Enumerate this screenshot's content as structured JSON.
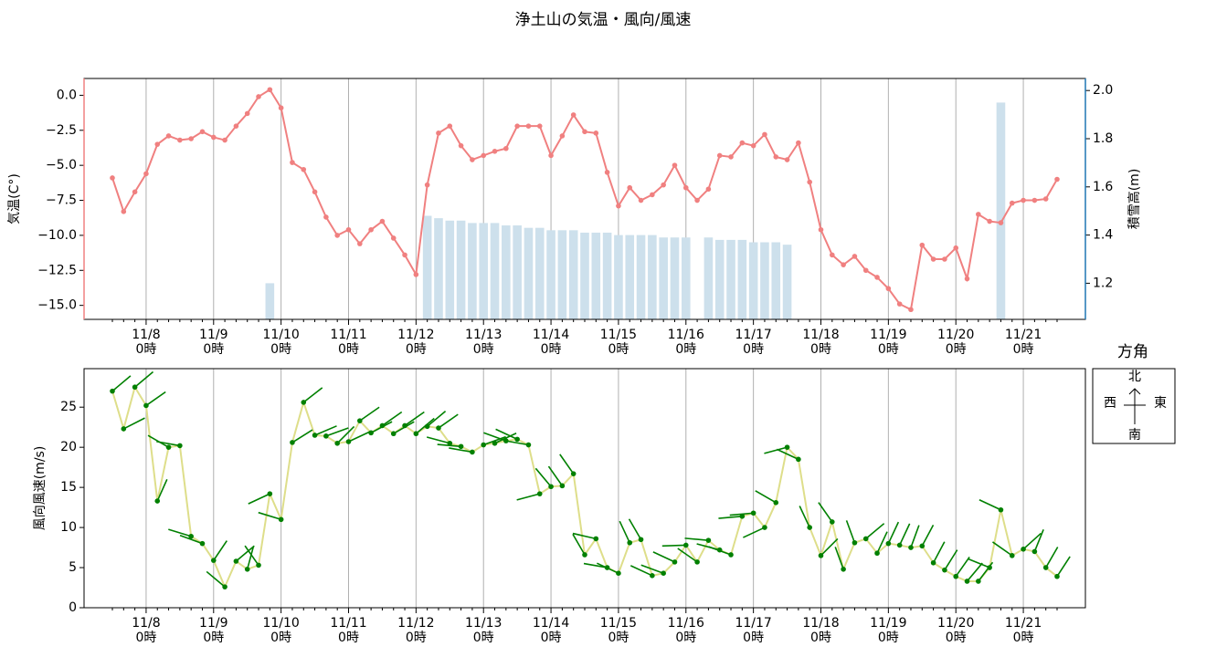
{
  "title": "浄土山の気温・風向/風速",
  "chart_data": [
    {
      "type": "line",
      "ylabel": "気温(C°)",
      "y2label": "積雪高(m)",
      "categories": [
        null,
        null,
        null,
        "11/8\n0時",
        null,
        null,
        null,
        null,
        null,
        "11/9\n0時",
        null,
        null,
        null,
        null,
        null,
        "11/10\n0時",
        null,
        null,
        null,
        null,
        null,
        "11/11\n0時",
        null,
        null,
        null,
        null,
        null,
        "11/12\n0時",
        null,
        null,
        null,
        null,
        null,
        "11/13\n0時",
        null,
        null,
        null,
        null,
        null,
        "11/14\n0時",
        null,
        null,
        null,
        null,
        null,
        "11/15\n0時",
        null,
        null,
        null,
        null,
        null,
        "11/16\n0時",
        null,
        null,
        null,
        null,
        null,
        "11/17\n0時",
        null,
        null,
        null,
        null,
        null,
        "11/18\n0時",
        null,
        null,
        null,
        null,
        null,
        "11/19\n0時",
        null,
        null,
        null,
        null,
        null,
        "11/20\n0時",
        null,
        null,
        null,
        null,
        null,
        "11/21\n0時",
        null,
        null,
        null
      ],
      "ylim": [
        -16.0,
        1.2
      ],
      "yticks": [
        {
          "value": 0,
          "label": "0.0"
        },
        {
          "value": -2.5,
          "label": "−2.5"
        },
        {
          "value": -5,
          "label": "−5.0"
        },
        {
          "value": -7.5,
          "label": "−7.5"
        },
        {
          "value": -10,
          "label": "−10.0"
        },
        {
          "value": -12.5,
          "label": "−12.5"
        },
        {
          "value": -15,
          "label": "−15.0"
        }
      ],
      "y2lim": [
        1.05,
        2.05
      ],
      "y2ticks": [
        1.2,
        1.4,
        1.6,
        1.8,
        {
          "value": 2,
          "label": "2.0"
        }
      ],
      "grid": true,
      "series": [
        {
          "type": "line",
          "color": "#f08080",
          "values": [
            -5.9,
            -8.3,
            -6.9,
            -5.6,
            -3.5,
            -2.9,
            -3.2,
            -3.1,
            -2.6,
            -3.0,
            -3.2,
            -2.2,
            -1.3,
            -0.1,
            0.4,
            -0.9,
            -4.8,
            -5.3,
            -6.9,
            -8.7,
            -10.0,
            -9.6,
            -10.6,
            -9.6,
            -9.0,
            -10.2,
            -11.4,
            -12.8,
            -6.4,
            -2.7,
            -2.2,
            -3.6,
            -4.6,
            -4.3,
            -4.0,
            -3.8,
            -2.2,
            -2.2,
            -2.2,
            -4.3,
            -2.9,
            -1.4,
            -2.6,
            -2.7,
            -5.5,
            -7.9,
            -6.6,
            -7.5,
            -7.1,
            -6.4,
            -5.0,
            -6.6,
            -7.5,
            -6.7,
            -4.3,
            -4.4,
            -3.4,
            -3.6,
            -2.8,
            -4.4,
            -4.6,
            -3.4,
            -6.2,
            -9.6,
            -11.4,
            -12.1,
            -11.5,
            -12.5,
            -13.0,
            -13.8,
            -14.9,
            -15.3,
            -10.7,
            -11.7,
            -11.7,
            -10.9,
            -13.1,
            -8.5,
            -9.0,
            -9.1,
            -7.7,
            -7.5,
            -7.5,
            -7.4,
            -6.0
          ]
        },
        {
          "type": "bar",
          "axis": "y2",
          "color": "#cde0ec",
          "values": [
            null,
            null,
            null,
            null,
            null,
            null,
            null,
            null,
            null,
            null,
            null,
            null,
            null,
            null,
            1.2,
            null,
            null,
            null,
            null,
            null,
            null,
            null,
            null,
            null,
            null,
            null,
            null,
            null,
            1.48,
            1.47,
            1.46,
            1.46,
            1.45,
            1.45,
            1.45,
            1.44,
            1.44,
            1.43,
            1.43,
            1.42,
            1.42,
            1.42,
            1.41,
            1.41,
            1.41,
            1.4,
            1.4,
            1.4,
            1.4,
            1.39,
            1.39,
            1.39,
            null,
            1.39,
            1.38,
            1.38,
            1.38,
            1.37,
            1.37,
            1.37,
            1.36,
            null,
            null,
            null,
            null,
            null,
            null,
            null,
            null,
            null,
            null,
            null,
            null,
            null,
            null,
            null,
            null,
            null,
            null,
            1.95,
            null,
            null,
            null,
            null,
            null
          ]
        }
      ]
    },
    {
      "type": "wind",
      "ylabel": "風向風速(m/s)",
      "categories": [
        null,
        null,
        null,
        "11/8\n0時",
        null,
        null,
        null,
        null,
        null,
        "11/9\n0時",
        null,
        null,
        null,
        null,
        null,
        "11/10\n0時",
        null,
        null,
        null,
        null,
        null,
        "11/11\n0時",
        null,
        null,
        null,
        null,
        null,
        "11/12\n0時",
        null,
        null,
        null,
        null,
        null,
        "11/13\n0時",
        null,
        null,
        null,
        null,
        null,
        "11/14\n0時",
        null,
        null,
        null,
        null,
        null,
        "11/15\n0時",
        null,
        null,
        null,
        null,
        null,
        "11/16\n0時",
        null,
        null,
        null,
        null,
        null,
        "11/17\n0時",
        null,
        null,
        null,
        null,
        null,
        "11/18\n0時",
        null,
        null,
        null,
        null,
        null,
        "11/19\n0時",
        null,
        null,
        null,
        null,
        null,
        "11/20\n0時",
        null,
        null,
        null,
        null,
        null,
        "11/21\n0時",
        null,
        null,
        null
      ],
      "ylim": [
        0,
        29.8
      ],
      "yticks": [
        0,
        5,
        10,
        15,
        20,
        25
      ],
      "grid": true,
      "line_color": "#dede8a",
      "color": "#008000",
      "values": [
        27.0,
        22.3,
        27.5,
        25.2,
        13.3,
        20.0,
        20.2,
        8.9,
        8.0,
        5.9,
        2.6,
        5.8,
        4.8,
        5.3,
        14.2,
        11.0,
        20.6,
        25.6,
        21.5,
        21.4,
        20.5,
        20.7,
        23.3,
        21.8,
        22.7,
        21.7,
        22.7,
        21.7,
        22.6,
        22.4,
        20.5,
        20.1,
        19.4,
        20.3,
        20.5,
        20.8,
        21.0,
        20.3,
        14.2,
        15.1,
        15.2,
        16.7,
        6.6,
        8.6,
        5.0,
        4.3,
        8.1,
        8.5,
        4.0,
        4.3,
        5.7,
        7.8,
        5.7,
        8.4,
        7.2,
        6.6,
        11.4,
        11.8,
        10.0,
        13.1,
        20.0,
        18.5,
        10.0,
        6.5,
        10.7,
        4.8,
        8.1,
        8.6,
        6.8,
        8.0,
        7.8,
        7.5,
        7.7,
        5.6,
        4.7,
        3.9,
        3.3,
        3.3,
        5.0,
        12.2,
        6.5,
        7.3,
        7.0,
        5.0,
        3.9
      ],
      "directions": [
        50,
        63,
        50,
        55,
        24,
        300,
        280,
        287,
        290,
        34,
        310,
        50,
        15,
        325,
        245,
        287,
        58,
        52,
        67,
        70,
        45,
        65,
        55,
        62,
        55,
        60,
        55,
        50,
        50,
        55,
        285,
        275,
        280,
        70,
        65,
        290,
        295,
        280,
        255,
        320,
        325,
        325,
        330,
        283,
        280,
        295,
        335,
        330,
        295,
        290,
        295,
        268,
        305,
        275,
        285,
        290,
        265,
        265,
        245,
        300,
        255,
        295,
        335,
        45,
        325,
        340,
        340,
        50,
        25,
        25,
        25,
        20,
        28,
        28,
        32,
        35,
        40,
        37,
        292,
        295,
        305,
        48,
        22,
        30,
        33
      ],
      "compass": {
        "title": "方角",
        "north": "北",
        "west": "西",
        "east": "東",
        "south": "南"
      }
    }
  ]
}
